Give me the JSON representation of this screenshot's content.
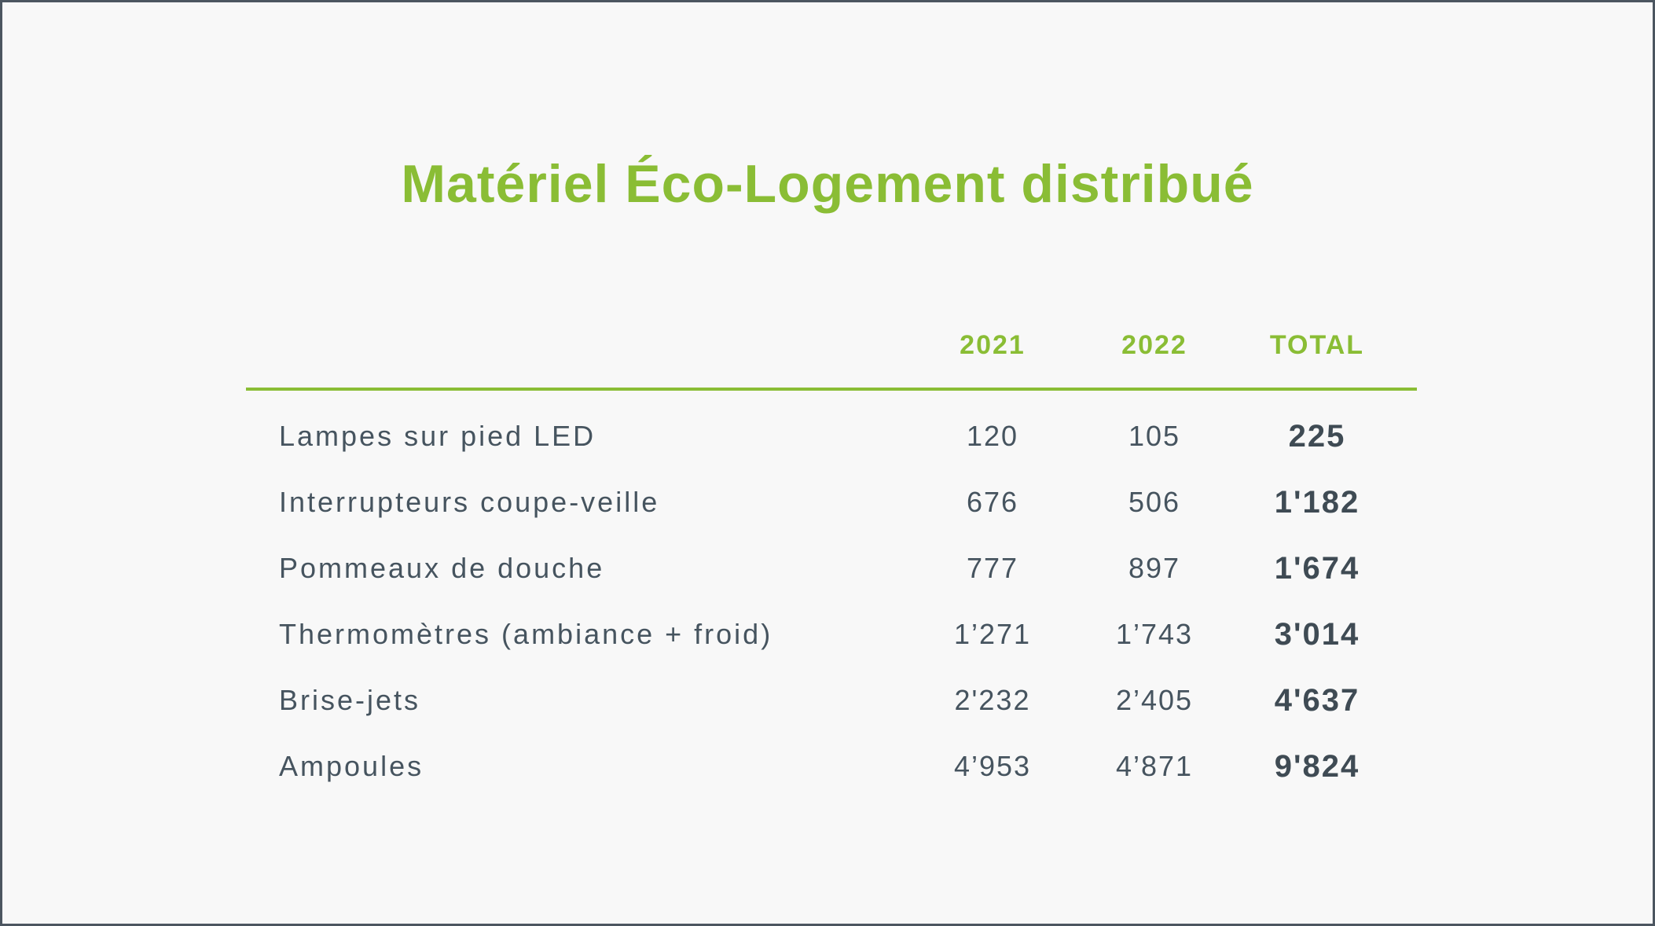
{
  "title": "Matériel Éco-Logement distribué",
  "columns": {
    "c2021": "2021",
    "c2022": "2022",
    "total": "TOTAL"
  },
  "rows": [
    {
      "label": "Lampes sur pied LED",
      "y2021": "120",
      "y2022": "105",
      "total": "225"
    },
    {
      "label": "Interrupteurs coupe-veille",
      "y2021": "676",
      "y2022": "506",
      "total": "1'182"
    },
    {
      "label": "Pommeaux de douche",
      "y2021": "777",
      "y2022": "897",
      "total": "1'674"
    },
    {
      "label": "Thermomètres (ambiance + froid)",
      "y2021": "1’271",
      "y2022": "1’743",
      "total": "3'014"
    },
    {
      "label": "Brise-jets",
      "y2021": "2'232",
      "y2022": "2’405",
      "total": "4'637"
    },
    {
      "label": "Ampoules",
      "y2021": "4’953",
      "y2022": "4’871",
      "total": "9'824"
    }
  ],
  "colors": {
    "accent": "#8abd35",
    "text": "#46545f",
    "background": "#f8f8f8",
    "border": "#4c5660"
  }
}
